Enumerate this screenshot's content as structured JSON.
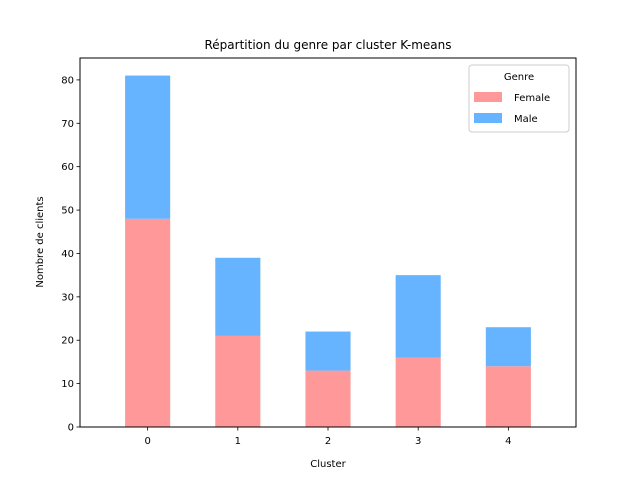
{
  "chart_data": {
    "type": "bar",
    "stacked": true,
    "title": "Répartition du genre par cluster K-means",
    "xlabel": "Cluster",
    "ylabel": "Nombre de clients",
    "categories": [
      "0",
      "1",
      "2",
      "3",
      "4"
    ],
    "series": [
      {
        "name": "Female",
        "values": [
          48,
          21,
          13,
          16,
          14
        ],
        "color": "#ff9999"
      },
      {
        "name": "Male",
        "values": [
          33,
          18,
          9,
          19,
          9
        ],
        "color": "#66b3ff"
      }
    ],
    "ylim": [
      0,
      85.05
    ],
    "yticks": [
      0,
      10,
      20,
      30,
      40,
      50,
      60,
      70,
      80
    ],
    "grid": false,
    "legend": {
      "title": "Genre",
      "placement": "top-right"
    }
  }
}
